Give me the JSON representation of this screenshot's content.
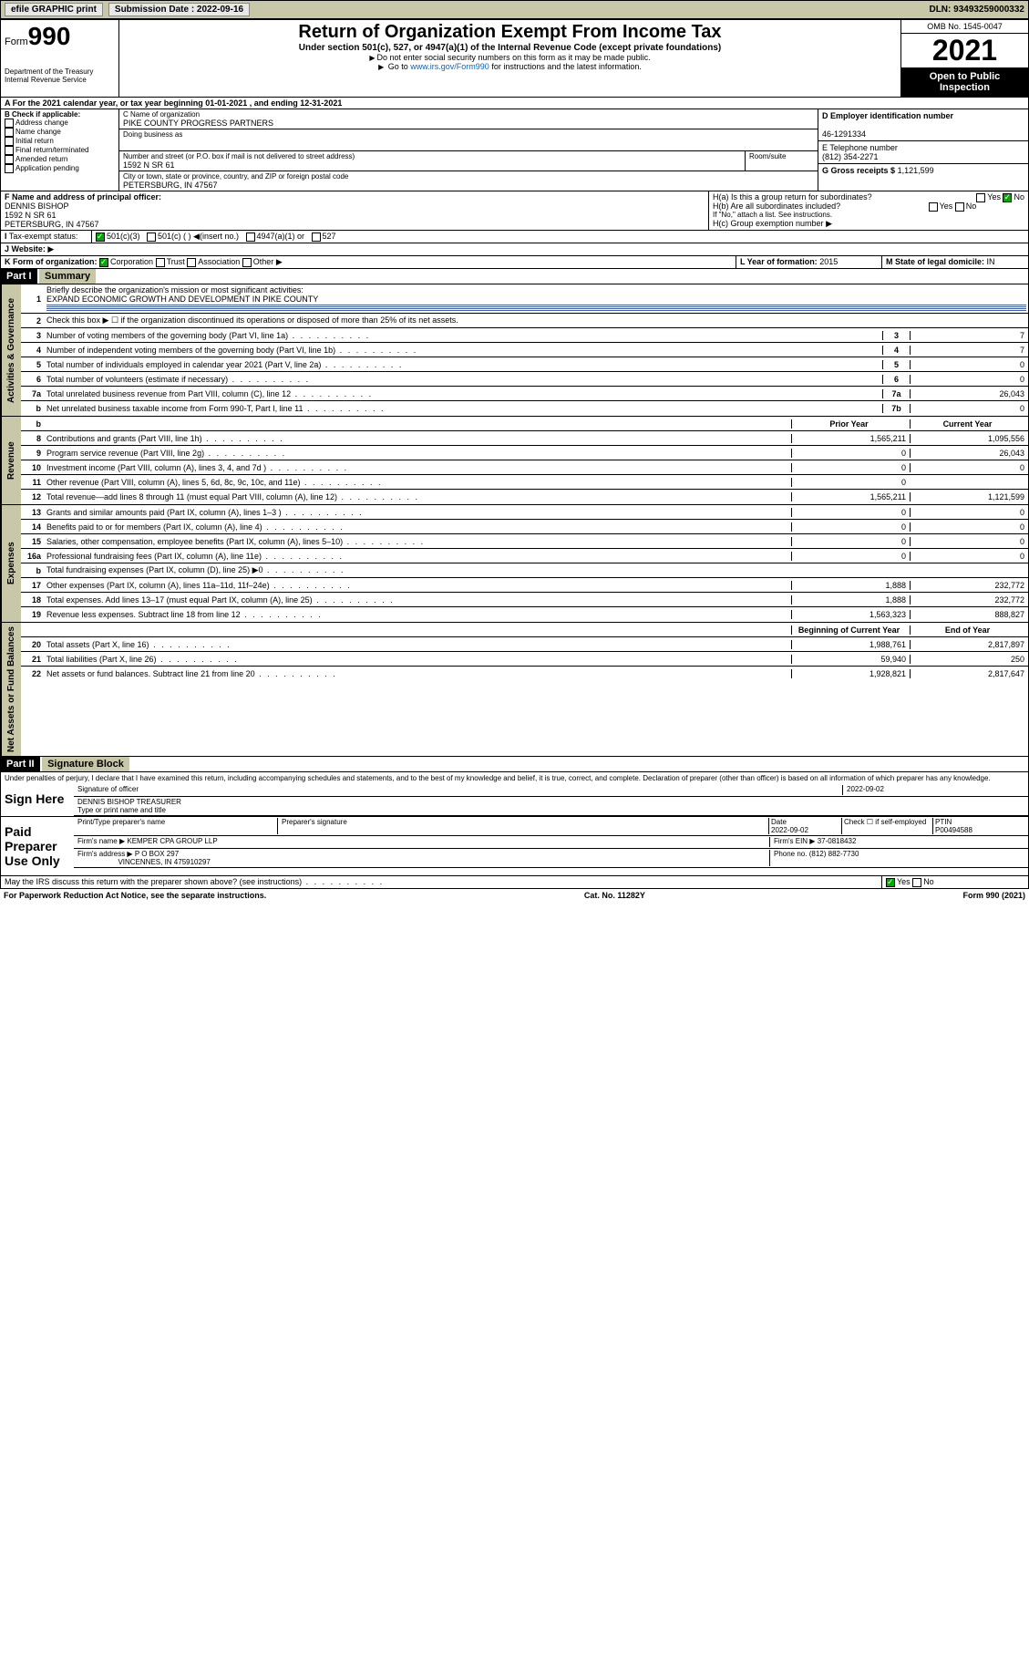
{
  "topbar": {
    "efile": "efile GRAPHIC print",
    "sub_label": "Submission Date : 2022-09-16",
    "dln": "DLN: 93493259000332"
  },
  "header": {
    "form_label": "Form",
    "form_num": "990",
    "dept": "Department of the Treasury Internal Revenue Service",
    "title": "Return of Organization Exempt From Income Tax",
    "subtitle": "Under section 501(c), 527, or 4947(a)(1) of the Internal Revenue Code (except private foundations)",
    "note1": "Do not enter social security numbers on this form as it may be made public.",
    "note2_pre": "Go to ",
    "note2_link": "www.irs.gov/Form990",
    "note2_post": " for instructions and the latest information.",
    "omb": "OMB No. 1545-0047",
    "year": "2021",
    "open": "Open to Public Inspection"
  },
  "section_a": "For the 2021 calendar year, or tax year beginning 01-01-2021  , and ending 12-31-2021",
  "col_b": {
    "label": "B Check if applicable:",
    "items": [
      "Address change",
      "Name change",
      "Initial return",
      "Final return/terminated",
      "Amended return",
      "Application pending"
    ]
  },
  "col_c": {
    "name_label": "C Name of organization",
    "name": "PIKE COUNTY PROGRESS PARTNERS",
    "dba_label": "Doing business as",
    "addr_label": "Number and street (or P.O. box if mail is not delivered to street address)",
    "room_label": "Room/suite",
    "addr": "1592 N SR 61",
    "city_label": "City or town, state or province, country, and ZIP or foreign postal code",
    "city": "PETERSBURG, IN  47567"
  },
  "col_d": {
    "label": "D Employer identification number",
    "ein": "46-1291334"
  },
  "col_e": {
    "label": "E Telephone number",
    "phone": "(812) 354-2271"
  },
  "col_g": {
    "label": "G Gross receipts $",
    "val": "1,121,599"
  },
  "col_f": {
    "label": "F  Name and address of principal officer:",
    "name": "DENNIS BISHOP",
    "addr1": "1592 N SR 61",
    "addr2": "PETERSBURG, IN  47567"
  },
  "col_h": {
    "ha": "H(a)  Is this a group return for subordinates?",
    "hb": "H(b)  Are all subordinates included?",
    "hb_note": "If \"No,\" attach a list. See instructions.",
    "hc": "H(c)  Group exemption number"
  },
  "tax_status": {
    "label": "Tax-exempt status:",
    "opts": [
      "501(c)(3)",
      "501(c) ( ) ◀(insert no.)",
      "4947(a)(1) or",
      "527"
    ]
  },
  "website": {
    "label": "Website:"
  },
  "col_k": {
    "label": "K Form of organization:",
    "opts": [
      "Corporation",
      "Trust",
      "Association",
      "Other"
    ]
  },
  "col_l": {
    "label": "L Year of formation:",
    "val": "2015"
  },
  "col_m": {
    "label": "M State of legal domicile:",
    "val": "IN"
  },
  "part1": {
    "hdr": "Part I",
    "title": "Summary",
    "vtab1": "Activities & Governance",
    "vtab2": "Revenue",
    "vtab3": "Expenses",
    "vtab4": "Net Assets or Fund Balances",
    "mission_label": "Briefly describe the organization's mission or most significant activities:",
    "mission": "EXPAND ECONOMIC GROWTH AND DEVELOPMENT IN PIKE COUNTY",
    "line2": "Check this box ▶ ☐  if the organization discontinued its operations or disposed of more than 25% of its net assets.",
    "prior_hdr": "Prior Year",
    "curr_hdr": "Current Year",
    "boy_hdr": "Beginning of Current Year",
    "eoy_hdr": "End of Year",
    "rows_gov": [
      {
        "n": "3",
        "t": "Number of voting members of the governing body (Part VI, line 1a)",
        "box": "3",
        "v": "7"
      },
      {
        "n": "4",
        "t": "Number of independent voting members of the governing body (Part VI, line 1b)",
        "box": "4",
        "v": "7"
      },
      {
        "n": "5",
        "t": "Total number of individuals employed in calendar year 2021 (Part V, line 2a)",
        "box": "5",
        "v": "0"
      },
      {
        "n": "6",
        "t": "Total number of volunteers (estimate if necessary)",
        "box": "6",
        "v": "0"
      },
      {
        "n": "7a",
        "t": "Total unrelated business revenue from Part VIII, column (C), line 12",
        "box": "7a",
        "v": "26,043"
      },
      {
        "n": "b",
        "t": "Net unrelated business taxable income from Form 990-T, Part I, line 11",
        "box": "7b",
        "v": "0"
      }
    ],
    "rows_rev": [
      {
        "n": "8",
        "t": "Contributions and grants (Part VIII, line 1h)",
        "p": "1,565,211",
        "c": "1,095,556"
      },
      {
        "n": "9",
        "t": "Program service revenue (Part VIII, line 2g)",
        "p": "0",
        "c": "26,043"
      },
      {
        "n": "10",
        "t": "Investment income (Part VIII, column (A), lines 3, 4, and 7d )",
        "p": "0",
        "c": "0"
      },
      {
        "n": "11",
        "t": "Other revenue (Part VIII, column (A), lines 5, 6d, 8c, 9c, 10c, and 11e)",
        "p": "0",
        "c": ""
      },
      {
        "n": "12",
        "t": "Total revenue—add lines 8 through 11 (must equal Part VIII, column (A), line 12)",
        "p": "1,565,211",
        "c": "1,121,599"
      }
    ],
    "rows_exp": [
      {
        "n": "13",
        "t": "Grants and similar amounts paid (Part IX, column (A), lines 1–3 )",
        "p": "0",
        "c": "0"
      },
      {
        "n": "14",
        "t": "Benefits paid to or for members (Part IX, column (A), line 4)",
        "p": "0",
        "c": "0"
      },
      {
        "n": "15",
        "t": "Salaries, other compensation, employee benefits (Part IX, column (A), lines 5–10)",
        "p": "0",
        "c": "0"
      },
      {
        "n": "16a",
        "t": "Professional fundraising fees (Part IX, column (A), line 11e)",
        "p": "0",
        "c": "0"
      },
      {
        "n": "b",
        "t": "Total fundraising expenses (Part IX, column (D), line 25) ▶0",
        "p": "",
        "c": "",
        "shade": true
      },
      {
        "n": "17",
        "t": "Other expenses (Part IX, column (A), lines 11a–11d, 11f–24e)",
        "p": "1,888",
        "c": "232,772"
      },
      {
        "n": "18",
        "t": "Total expenses. Add lines 13–17 (must equal Part IX, column (A), line 25)",
        "p": "1,888",
        "c": "232,772"
      },
      {
        "n": "19",
        "t": "Revenue less expenses. Subtract line 18 from line 12",
        "p": "1,563,323",
        "c": "888,827"
      }
    ],
    "rows_net": [
      {
        "n": "20",
        "t": "Total assets (Part X, line 16)",
        "p": "1,988,761",
        "c": "2,817,897"
      },
      {
        "n": "21",
        "t": "Total liabilities (Part X, line 26)",
        "p": "59,940",
        "c": "250"
      },
      {
        "n": "22",
        "t": "Net assets or fund balances. Subtract line 21 from line 20",
        "p": "1,928,821",
        "c": "2,817,647"
      }
    ]
  },
  "part2": {
    "hdr": "Part II",
    "title": "Signature Block",
    "decl": "Under penalties of perjury, I declare that I have examined this return, including accompanying schedules and statements, and to the best of my knowledge and belief, it is true, correct, and complete. Declaration of preparer (other than officer) is based on all information of which preparer has any knowledge.",
    "sign_here": "Sign Here",
    "sig_officer": "Signature of officer",
    "sig_date": "2022-09-02",
    "officer_name": "DENNIS BISHOP TREASURER",
    "officer_label": "Type or print name and title",
    "paid": "Paid Preparer Use Only",
    "prep_name_label": "Print/Type preparer's name",
    "prep_sig_label": "Preparer's signature",
    "date_label": "Date",
    "date_val": "2022-09-02",
    "check_label": "Check ☐ if self-employed",
    "ptin_label": "PTIN",
    "ptin": "P00494588",
    "firm_name_label": "Firm's name  ▶",
    "firm_name": "KEMPER CPA GROUP LLP",
    "firm_ein_label": "Firm's EIN ▶",
    "firm_ein": "37-0818432",
    "firm_addr_label": "Firm's address ▶",
    "firm_addr1": "P O BOX 297",
    "firm_addr2": "VINCENNES, IN  475910297",
    "phone_label": "Phone no.",
    "phone": "(812) 882-7730",
    "discuss": "May the IRS discuss this return with the preparer shown above? (see instructions)"
  },
  "footer": {
    "left": "For Paperwork Reduction Act Notice, see the separate instructions.",
    "mid": "Cat. No. 11282Y",
    "right": "Form 990 (2021)"
  },
  "colors": {
    "khaki": "#c8c8a8",
    "link": "#0066cc",
    "green": "#0a0"
  }
}
